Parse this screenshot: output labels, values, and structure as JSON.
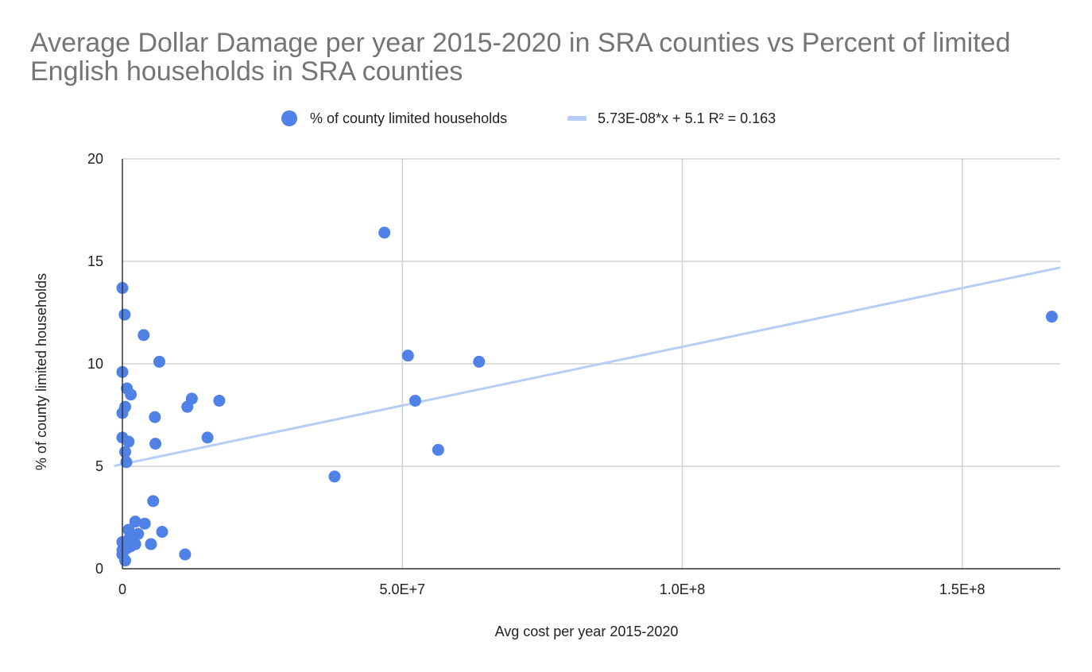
{
  "chart_data": {
    "type": "scatter",
    "title": "Average Dollar Damage per year 2015-2020 in SRA counties vs Percent of limited English households in SRA counties",
    "xlabel": "Avg cost per year 2015-2020",
    "ylabel": "% of county limited households",
    "xlim": [
      0,
      167500000
    ],
    "ylim": [
      0,
      20
    ],
    "grid": true,
    "legend_position": "top",
    "x_ticks": [
      {
        "value": 0,
        "label": "0"
      },
      {
        "value": 50000000,
        "label": "5.0E+7"
      },
      {
        "value": 100000000,
        "label": "1.0E+8"
      },
      {
        "value": 150000000,
        "label": "1.5E+8"
      }
    ],
    "y_ticks": [
      {
        "value": 0,
        "label": "0"
      },
      {
        "value": 5,
        "label": "5"
      },
      {
        "value": 10,
        "label": "10"
      },
      {
        "value": 15,
        "label": "15"
      },
      {
        "value": 20,
        "label": "20"
      }
    ],
    "series": [
      {
        "name": "% of county limited households",
        "color": "#4f81e6",
        "points": [
          [
            0,
            13.7
          ],
          [
            400000,
            12.4
          ],
          [
            0,
            9.6
          ],
          [
            800000,
            8.8
          ],
          [
            1500000,
            8.5
          ],
          [
            500000,
            7.9
          ],
          [
            0,
            7.6
          ],
          [
            0,
            6.4
          ],
          [
            1100000,
            6.2
          ],
          [
            500000,
            5.7
          ],
          [
            700000,
            5.2
          ],
          [
            3800000,
            11.4
          ],
          [
            6600000,
            10.1
          ],
          [
            5800000,
            7.4
          ],
          [
            5900000,
            6.1
          ],
          [
            11600000,
            7.9
          ],
          [
            12400000,
            8.3
          ],
          [
            17300000,
            8.2
          ],
          [
            15200000,
            6.4
          ],
          [
            5500000,
            3.3
          ],
          [
            2300000,
            2.3
          ],
          [
            4000000,
            2.2
          ],
          [
            7100000,
            1.8
          ],
          [
            2800000,
            1.7
          ],
          [
            1100000,
            1.9
          ],
          [
            2300000,
            1.2
          ],
          [
            5100000,
            1.2
          ],
          [
            11200000,
            0.7
          ],
          [
            0,
            1.3
          ],
          [
            0,
            0.9
          ],
          [
            500000,
            1.1
          ],
          [
            1500000,
            1.1
          ],
          [
            800000,
            1.0
          ],
          [
            0,
            0.7
          ],
          [
            500000,
            0.4
          ],
          [
            1300000,
            1.5
          ],
          [
            46800000,
            16.4
          ],
          [
            37900000,
            4.5
          ],
          [
            51000000,
            10.4
          ],
          [
            52300000,
            8.2
          ],
          [
            56400000,
            5.8
          ],
          [
            63700000,
            10.1
          ],
          [
            166000000,
            12.3
          ]
        ]
      },
      {
        "name": "5.73E-08*x + 5.1 R² = 0.163",
        "type": "trendline",
        "color": "#b8cdf6",
        "slope": 5.73e-08,
        "intercept": 5.1
      }
    ]
  }
}
